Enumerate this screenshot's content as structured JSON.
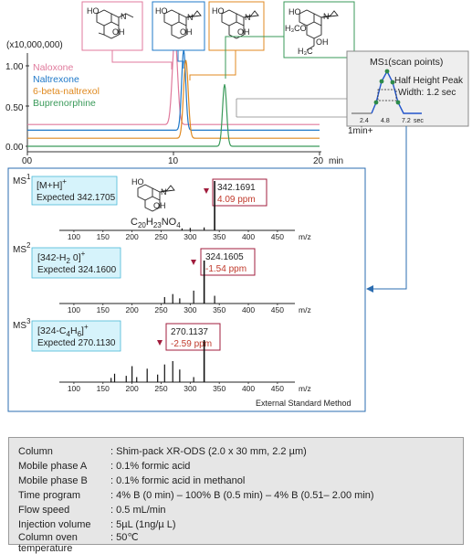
{
  "chromatogram": {
    "y_multiplier_label": "(x10,000,000)",
    "y_ticks": [
      "1.00",
      "0.50",
      "0.00"
    ],
    "x_ticks": [
      "00",
      "10",
      "20"
    ],
    "x_unit": "min",
    "legend": [
      {
        "name": "Naloxone",
        "color": "#e07a9c"
      },
      {
        "name": "Naltrexone",
        "color": "#1f78c8"
      },
      {
        "name": "6-beta-naltrexol",
        "color": "#e08a20"
      },
      {
        "name": "Buprenorphine",
        "color": "#3a9a5a"
      }
    ],
    "structure_labels": {
      "oh": "OH",
      "ho": "HO",
      "n": "N",
      "h3co": "H₃CO",
      "h3c": "H₃C"
    }
  },
  "ms1_inset": {
    "title_ms": "MS",
    "title_sub": "1",
    "title_rest": "(scan points)",
    "peak_label_line1": "Half Height Peak",
    "peak_label_line2": "Width: 1.2 sec",
    "x_ticks": [
      "2.4",
      "4.8",
      "7.2"
    ],
    "x_unit": "sec",
    "corner_label": "1min+"
  },
  "ms_panel": {
    "method_label": "External Standard Method",
    "mz_unit": "m/z",
    "mz_ticks": [
      "100",
      "150",
      "200",
      "250",
      "300",
      "350",
      "400",
      "450"
    ],
    "ms1": {
      "label": "MS",
      "sup": "1",
      "ion": "[M+H]",
      "ion_sup": "+",
      "expected": "Expected 342.1705",
      "measured": "342.1691",
      "ppm": "4.09 ppm",
      "formula_c": "C",
      "formula_c_sub": "20",
      "formula_h": "H",
      "formula_h_sub": "23",
      "formula_no": "NO",
      "formula_no_sub": "4"
    },
    "ms2": {
      "label": "MS",
      "sup": "2",
      "ion_a": "[342-H",
      "ion_a_sub": "2",
      "ion_b": " 0]",
      "ion_sup": "+",
      "expected": "Expected 324.1600",
      "measured": "324.1605",
      "ppm": "-1.54 ppm"
    },
    "ms3": {
      "label": "MS",
      "sup": "3",
      "ion_a": "[324-C",
      "ion_a_sub": "4",
      "ion_b": "H",
      "ion_b_sub": "6",
      "ion_c": "]",
      "ion_sup": "+",
      "expected": "Expected 270.1130",
      "measured": "270.1137",
      "ppm": "-2.59 ppm"
    }
  },
  "conditions": [
    {
      "key": "Column",
      "value": ": Shim-pack XR-ODS (2.0 x 30 mm, 2.2 µm)"
    },
    {
      "key": "Mobile phase A",
      "value": ": 0.1% formic acid"
    },
    {
      "key": "Mobile phase B",
      "value": ": 0.1% formic acid in methanol"
    },
    {
      "key": "Time program",
      "value": ": 4% B (0 min) – 100% B (0.5 min) – 4% B (0.51– 2.00 min)"
    },
    {
      "key": "Flow speed",
      "value": ": 0.5 mL/min"
    },
    {
      "key": "Injection volume",
      "value": ": 5µL (1ng/µ L)"
    },
    {
      "key": "Column oven temperature",
      "value": ": 50℃"
    }
  ],
  "chart_data": [
    {
      "type": "line",
      "title": "",
      "xlabel": "min",
      "ylabel": "(x10,000,000)",
      "xlim": [
        0,
        20
      ],
      "ylim": [
        0,
        1.1
      ],
      "series": [
        {
          "name": "Naloxone",
          "color": "#e07a9c",
          "baseline": 0.27,
          "peak_time": 10.1,
          "peak_height": 1.09,
          "width": 0.18
        },
        {
          "name": "Naltrexone",
          "color": "#1f78c8",
          "baseline": 0.2,
          "peak_time": 10.7,
          "peak_height": 1.0,
          "width": 0.14
        },
        {
          "name": "6-beta-naltrexol",
          "color": "#e08a20",
          "baseline": 0.1,
          "peak_time": 10.85,
          "peak_height": 0.97,
          "width": 0.16
        },
        {
          "name": "Buprenorphine",
          "color": "#3a9a5a",
          "baseline": 0.0,
          "peak_time": 13.5,
          "peak_height": 0.77,
          "width": 0.14
        }
      ]
    },
    {
      "type": "bar",
      "title": "MS1",
      "xlabel": "m/z",
      "xlim": [
        75,
        480
      ],
      "peaks": [
        {
          "mz": 286,
          "rel": 0.04
        },
        {
          "mz": 300,
          "rel": 0.05
        },
        {
          "mz": 324,
          "rel": 0.06
        },
        {
          "mz": 342,
          "rel": 1.0
        }
      ]
    },
    {
      "type": "bar",
      "title": "MS2",
      "xlabel": "m/z",
      "xlim": [
        75,
        480
      ],
      "peaks": [
        {
          "mz": 256,
          "rel": 0.15
        },
        {
          "mz": 270,
          "rel": 0.22
        },
        {
          "mz": 282,
          "rel": 0.12
        },
        {
          "mz": 306,
          "rel": 0.3
        },
        {
          "mz": 324,
          "rel": 1.0
        },
        {
          "mz": 342,
          "rel": 0.18
        }
      ]
    },
    {
      "type": "bar",
      "title": "MS3",
      "xlabel": "m/z",
      "xlim": [
        75,
        480
      ],
      "peaks": [
        {
          "mz": 164,
          "rel": 0.1
        },
        {
          "mz": 170,
          "rel": 0.2
        },
        {
          "mz": 190,
          "rel": 0.15
        },
        {
          "mz": 200,
          "rel": 0.38
        },
        {
          "mz": 208,
          "rel": 0.12
        },
        {
          "mz": 226,
          "rel": 0.32
        },
        {
          "mz": 244,
          "rel": 0.18
        },
        {
          "mz": 256,
          "rel": 0.42
        },
        {
          "mz": 270,
          "rel": 0.5
        },
        {
          "mz": 282,
          "rel": 0.3
        },
        {
          "mz": 306,
          "rel": 0.12
        },
        {
          "mz": 324,
          "rel": 1.0
        }
      ]
    }
  ]
}
